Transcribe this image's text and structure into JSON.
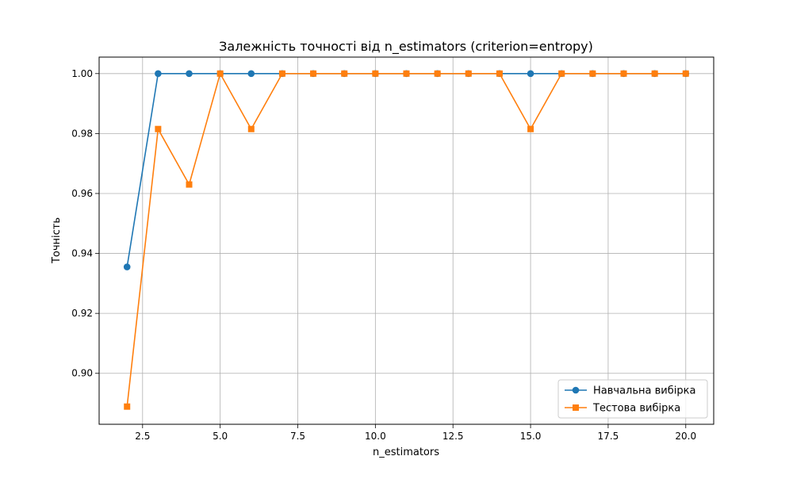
{
  "chart_data": {
    "type": "line",
    "title": "Залежність точності від n_estimators (criterion=entropy)",
    "xlabel": "n_estimators",
    "ylabel": "Точність",
    "xlim": [
      1.1,
      20.9
    ],
    "ylim": [
      0.883,
      1.0055
    ],
    "xticks": [
      2.5,
      5.0,
      7.5,
      10.0,
      12.5,
      15.0,
      17.5,
      20.0
    ],
    "xtick_labels": [
      "2.5",
      "5.0",
      "7.5",
      "10.0",
      "12.5",
      "15.0",
      "17.5",
      "20.0"
    ],
    "yticks": [
      0.9,
      0.92,
      0.94,
      0.96,
      0.98,
      1.0
    ],
    "ytick_labels": [
      "0.90",
      "0.92",
      "0.94",
      "0.96",
      "0.98",
      "1.00"
    ],
    "grid": true,
    "legend_position": "lower-right",
    "x": [
      2,
      3,
      4,
      5,
      6,
      7,
      8,
      9,
      10,
      11,
      12,
      13,
      14,
      15,
      16,
      17,
      18,
      19,
      20
    ],
    "series": [
      {
        "name": "Навчальна вибірка",
        "color": "#1f77b4",
        "marker": "circle",
        "values": [
          0.9355,
          1.0,
          1.0,
          1.0,
          1.0,
          1.0,
          1.0,
          1.0,
          1.0,
          1.0,
          1.0,
          1.0,
          1.0,
          1.0,
          1.0,
          1.0,
          1.0,
          1.0,
          1.0
        ]
      },
      {
        "name": "Тестова вибірка",
        "color": "#ff7f0e",
        "marker": "square",
        "values": [
          0.8889,
          0.9815,
          0.963,
          1.0,
          0.9815,
          1.0,
          1.0,
          1.0,
          1.0,
          1.0,
          1.0,
          1.0,
          1.0,
          0.9815,
          1.0,
          1.0,
          1.0,
          1.0,
          1.0
        ]
      }
    ]
  }
}
